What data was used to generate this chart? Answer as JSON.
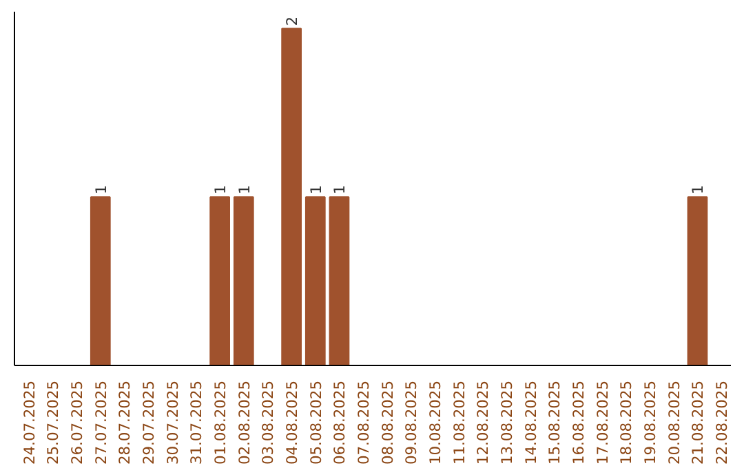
{
  "chart_data": {
    "type": "bar",
    "categories": [
      "24.07.2025",
      "25.07.2025",
      "26.07.2025",
      "27.07.2025",
      "28.07.2025",
      "29.07.2025",
      "30.07.2025",
      "31.07.2025",
      "01.08.2025",
      "02.08.2025",
      "03.08.2025",
      "04.08.2025",
      "05.08.2025",
      "06.08.2025",
      "07.08.2025",
      "08.08.2025",
      "09.08.2025",
      "10.08.2025",
      "11.08.2025",
      "12.08.2025",
      "13.08.2025",
      "14.08.2025",
      "15.08.2025",
      "16.08.2025",
      "17.08.2025",
      "18.08.2025",
      "19.08.2025",
      "20.08.2025",
      "21.08.2025",
      "22.08.2025"
    ],
    "values": [
      0,
      0,
      0,
      1,
      0,
      0,
      0,
      0,
      1,
      1,
      0,
      2,
      1,
      1,
      0,
      0,
      0,
      0,
      0,
      0,
      0,
      0,
      0,
      0,
      0,
      0,
      0,
      0,
      1,
      0
    ],
    "value_labels": [
      null,
      null,
      null,
      "1",
      null,
      null,
      null,
      null,
      "1",
      "1",
      null,
      "2",
      "1",
      "1",
      null,
      null,
      null,
      null,
      null,
      null,
      null,
      null,
      null,
      null,
      null,
      null,
      null,
      null,
      "1",
      null
    ],
    "color": "#a0522d",
    "grid": false,
    "tick_labels": "x"
  }
}
